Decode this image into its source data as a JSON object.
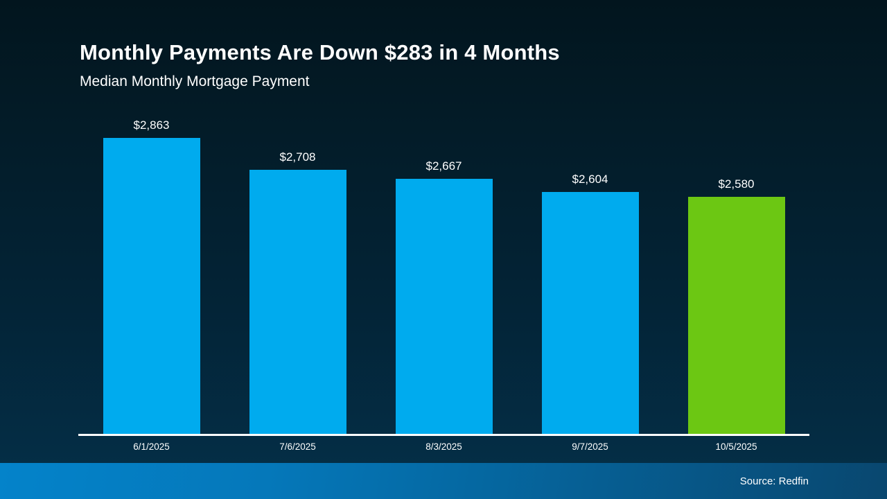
{
  "header": {
    "title": "Monthly Payments Are Down $283 in 4 Months",
    "subtitle": "Median Monthly Mortgage Payment"
  },
  "footer": {
    "source_label": "Source: Redfin"
  },
  "colors": {
    "bar_blue": "#00ABEE",
    "bar_green": "#6CC713",
    "background_top": "#031a25",
    "background_bottom": "#043049",
    "axis": "#ffffff",
    "text": "#ffffff"
  },
  "chart_data": {
    "type": "bar",
    "title": "Monthly Payments Are Down $283 in 4 Months",
    "subtitle": "Median Monthly Mortgage Payment",
    "xlabel": "",
    "ylabel": "Median Monthly Mortgage Payment ($)",
    "ylim": [
      1435,
      2863
    ],
    "grid": false,
    "legend": "none",
    "categories": [
      "6/1/2025",
      "7/6/2025",
      "8/3/2025",
      "9/7/2025",
      "10/5/2025"
    ],
    "values": [
      2863,
      2708,
      2667,
      2604,
      2580
    ],
    "points": [
      {
        "category": "6/1/2025",
        "value": 2863,
        "label": "$2,863",
        "color_key": "bar_blue"
      },
      {
        "category": "7/6/2025",
        "value": 2708,
        "label": "$2,708",
        "color_key": "bar_blue"
      },
      {
        "category": "8/3/2025",
        "value": 2667,
        "label": "$2,667",
        "color_key": "bar_blue"
      },
      {
        "category": "9/7/2025",
        "value": 2604,
        "label": "$2,604",
        "color_key": "bar_blue"
      },
      {
        "category": "10/5/2025",
        "value": 2580,
        "label": "$2,580",
        "color_key": "bar_green"
      }
    ],
    "highlight_index": 4,
    "annotation": "Last bar highlighted green; blue bars are prior months"
  }
}
